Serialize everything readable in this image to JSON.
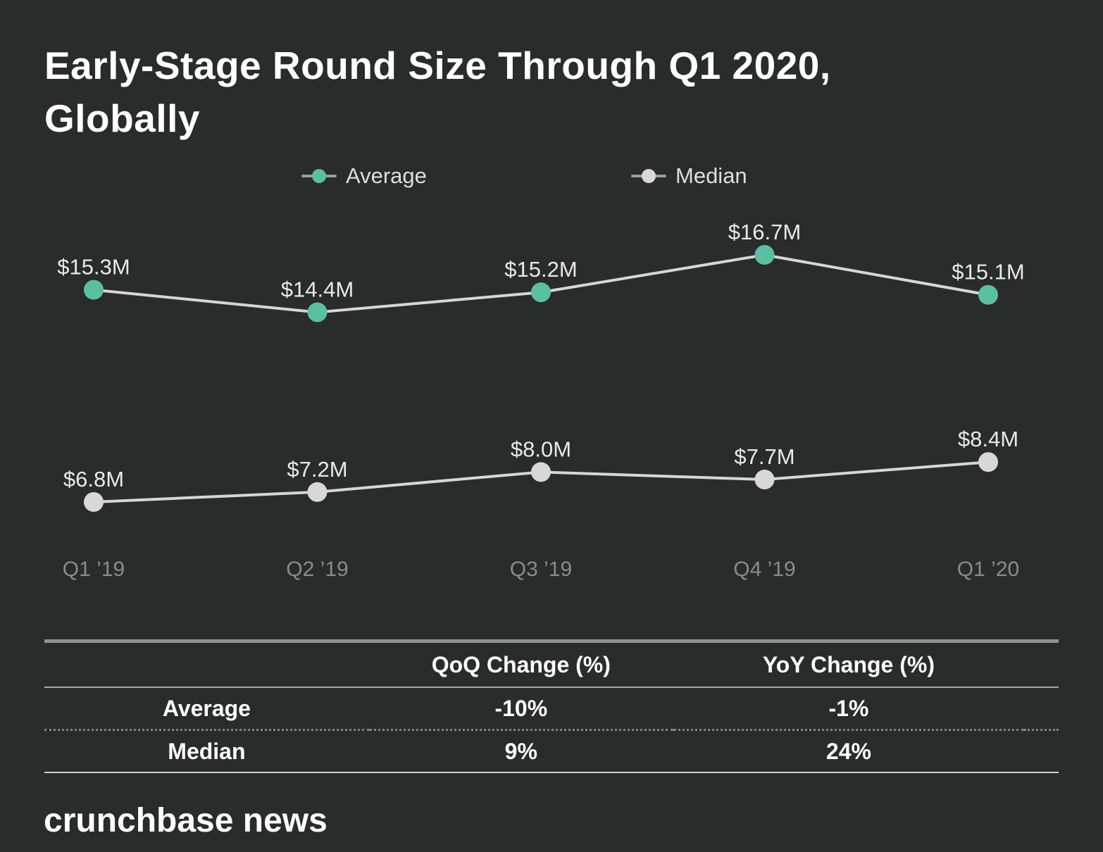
{
  "title": {
    "lines": [
      "Early-Stage Round Size Through Q1 2020,",
      "Globally"
    ]
  },
  "legend": {
    "items": [
      {
        "label": "Average",
        "color": "#5abfa3"
      },
      {
        "label": "Median",
        "color": "#d8d8d8"
      }
    ]
  },
  "chart_data": {
    "type": "line",
    "x": [
      "Q1 ’19",
      "Q2 ’19",
      "Q3 ’19",
      "Q4 ’19",
      "Q1 ’20"
    ],
    "series": [
      {
        "name": "Average",
        "color": "#5abfa3",
        "values": [
          15.3,
          14.4,
          15.2,
          16.7,
          15.1
        ],
        "labels": [
          "$15.3M",
          "$14.4M",
          "$15.2M",
          "$16.7M",
          "$15.1M"
        ]
      },
      {
        "name": "Median",
        "color": "#d8d8d8",
        "values": [
          6.8,
          7.2,
          8.0,
          7.7,
          8.4
        ],
        "labels": [
          "$6.8M",
          "$7.2M",
          "$8.0M",
          "$7.7M",
          "$8.4M"
        ]
      }
    ],
    "line_color": "#d6d6d6",
    "value_unit": "$M",
    "title": "Early-Stage Round Size Through Q1 2020, Globally",
    "legend_position": "top",
    "grid": false,
    "background": "#2a2b2b"
  },
  "table": {
    "headers": [
      "",
      "QoQ Change (%)",
      "YoY Change (%)"
    ],
    "rows": [
      {
        "label": "Average",
        "qoq": "-10%",
        "yoy": "-1%"
      },
      {
        "label": "Median",
        "qoq": "9%",
        "yoy": "24%"
      }
    ]
  },
  "footer": {
    "brand": "crunchbase news"
  }
}
